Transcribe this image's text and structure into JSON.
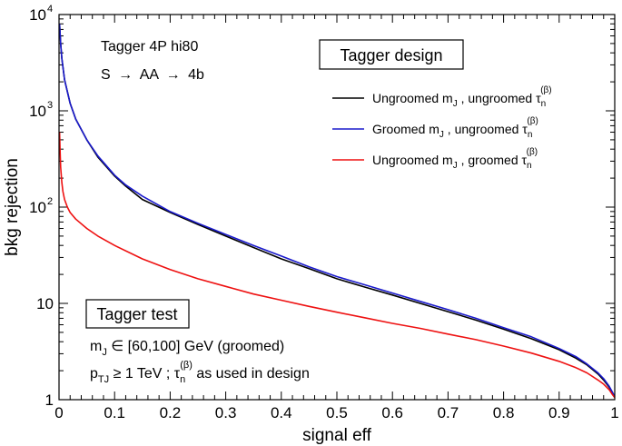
{
  "chart_data": {
    "type": "line",
    "xlabel": "signal eff",
    "ylabel": "bkg rejection",
    "xlim": [
      0,
      1
    ],
    "ylim": [
      1,
      10000
    ],
    "yscale": "log",
    "x_ticks": [
      "0",
      "0.1",
      "0.2",
      "0.3",
      "0.4",
      "0.5",
      "0.6",
      "0.7",
      "0.8",
      "0.9",
      "1"
    ],
    "y_ticks": [
      {
        "value": 1,
        "label": "1",
        "sup": ""
      },
      {
        "value": 10,
        "label": "10",
        "sup": ""
      },
      {
        "value": 100,
        "label": "10",
        "sup": "2"
      },
      {
        "value": 1000,
        "label": "10",
        "sup": "3"
      },
      {
        "value": 10000,
        "label": "10",
        "sup": "4"
      }
    ],
    "annotations": {
      "tagger_line1": "Tagger 4P hi80",
      "tagger_line2_a": "S",
      "tagger_line2_b": "AA",
      "tagger_line2_c": "4b",
      "arrow": "→"
    },
    "design_box": {
      "title": "Tagger design"
    },
    "test_box": {
      "title": "Tagger test",
      "line1_main": "m",
      "line1_sub": "J",
      "line1_rest": " ∈ [60,100] GeV (groomed)",
      "line2_p": "p",
      "line2_sub": "TJ",
      "line2_mid": " ≥ 1 TeV ; τ",
      "line2_tsub": "n",
      "line2_tsup": "(β)",
      "line2_rest": " as used in design"
    },
    "series": [
      {
        "name": "Ungroomed m_J , ungroomed tau_n^(beta)",
        "legend_parts": [
          "Ungroomed m",
          "J",
          " , ungroomed τ",
          "n",
          "(β)"
        ],
        "color": "#000000",
        "x": [
          0.001,
          0.003,
          0.005,
          0.01,
          0.02,
          0.03,
          0.05,
          0.07,
          0.1,
          0.12,
          0.15,
          0.2,
          0.25,
          0.3,
          0.35,
          0.4,
          0.45,
          0.5,
          0.55,
          0.6,
          0.65,
          0.7,
          0.75,
          0.8,
          0.85,
          0.9,
          0.93,
          0.95,
          0.97,
          0.98,
          0.99,
          0.995,
          1.0
        ],
        "y": [
          8000,
          5000,
          3500,
          2100,
          1200,
          820,
          500,
          330,
          210,
          165,
          120,
          88,
          66,
          50,
          38,
          29,
          23,
          18,
          14.8,
          12.2,
          10.0,
          8.2,
          6.7,
          5.4,
          4.3,
          3.3,
          2.7,
          2.3,
          1.85,
          1.6,
          1.35,
          1.2,
          1.08
        ]
      },
      {
        "name": "Groomed m_J , ungroomed tau_n^(beta)",
        "legend_parts": [
          "Groomed m",
          "J",
          " , ungroomed τ",
          "n",
          "(β)"
        ],
        "color": "#1a1acc",
        "x": [
          0.001,
          0.003,
          0.005,
          0.01,
          0.02,
          0.03,
          0.05,
          0.07,
          0.1,
          0.12,
          0.15,
          0.2,
          0.25,
          0.3,
          0.35,
          0.4,
          0.45,
          0.5,
          0.55,
          0.6,
          0.65,
          0.7,
          0.75,
          0.8,
          0.85,
          0.9,
          0.93,
          0.95,
          0.97,
          0.98,
          0.99,
          0.995,
          1.0
        ],
        "y": [
          8000,
          5000,
          3500,
          2100,
          1200,
          820,
          500,
          340,
          215,
          170,
          130,
          90,
          68,
          52,
          40,
          31,
          24,
          19,
          15.6,
          12.8,
          10.5,
          8.6,
          7.0,
          5.6,
          4.5,
          3.4,
          2.8,
          2.35,
          1.9,
          1.65,
          1.38,
          1.22,
          1.08
        ]
      },
      {
        "name": "Ungroomed m_J , groomed tau_n^(beta)",
        "legend_parts": [
          "Ungroomed m",
          "J",
          " , groomed τ",
          "n",
          "(β)"
        ],
        "color": "#ee1111",
        "x": [
          0.001,
          0.002,
          0.003,
          0.005,
          0.007,
          0.01,
          0.015,
          0.02,
          0.03,
          0.05,
          0.07,
          0.1,
          0.15,
          0.2,
          0.25,
          0.3,
          0.35,
          0.4,
          0.45,
          0.5,
          0.55,
          0.6,
          0.65,
          0.7,
          0.75,
          0.8,
          0.85,
          0.9,
          0.93,
          0.95,
          0.97,
          0.98,
          0.99,
          0.995,
          1.0
        ],
        "y": [
          600,
          380,
          260,
          180,
          145,
          120,
          100,
          88,
          75,
          60,
          50,
          40,
          29,
          22.5,
          18,
          15,
          12.5,
          10.8,
          9.3,
          8.1,
          7.1,
          6.2,
          5.5,
          4.8,
          4.2,
          3.6,
          3.05,
          2.5,
          2.15,
          1.9,
          1.6,
          1.45,
          1.27,
          1.15,
          1.05
        ]
      }
    ]
  }
}
